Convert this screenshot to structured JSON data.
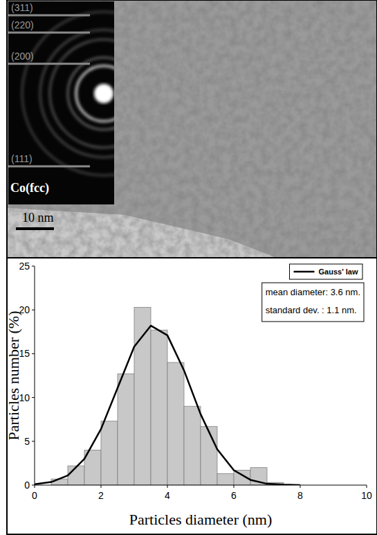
{
  "micrograph": {
    "reflections": [
      "(311)",
      "(220)",
      "(200)",
      "(111)"
    ],
    "phase": "Co(fcc)",
    "scale_bar": "10 nm"
  },
  "chart_data": {
    "type": "histogram",
    "x_label": "Particles diameter (nm)",
    "y_label": "Particles number (%)",
    "bins": [
      0.5,
      1,
      1.5,
      2,
      2.5,
      3,
      3.5,
      4,
      4.5,
      5,
      5.5,
      6,
      6.5,
      7,
      7.5
    ],
    "values": [
      0.7,
      2.2,
      4,
      7.3,
      12.7,
      20.3,
      17.7,
      14,
      9,
      6.7,
      1.3,
      1.7,
      2,
      0.3
    ],
    "color": "#c8c8c8",
    "series": [
      {
        "name": "Gauss' law",
        "type": "line",
        "color": "#000000",
        "x": [
          0,
          0.5,
          1,
          1.5,
          2,
          2.5,
          3,
          3.5,
          4,
          4.5,
          5,
          5.5,
          6,
          6.5,
          7,
          7.5,
          8
        ],
        "values": [
          0.1,
          0.35,
          1.1,
          3,
          6.4,
          11.1,
          15.8,
          18.2,
          17.1,
          13.1,
          8.1,
          4.1,
          1.7,
          0.6,
          0.15,
          0.05,
          0
        ]
      }
    ],
    "annotations": [
      "mean diameter: 3.6 nm.",
      "standard dev. : 1.1 nm."
    ],
    "legend": "upper right",
    "xlim": [
      0,
      10
    ],
    "xticks": [
      0,
      2,
      4,
      6,
      8,
      10
    ],
    "ylim": [
      0,
      25
    ],
    "yticks": [
      0,
      5,
      10,
      15,
      20,
      25
    ],
    "grid": false
  }
}
